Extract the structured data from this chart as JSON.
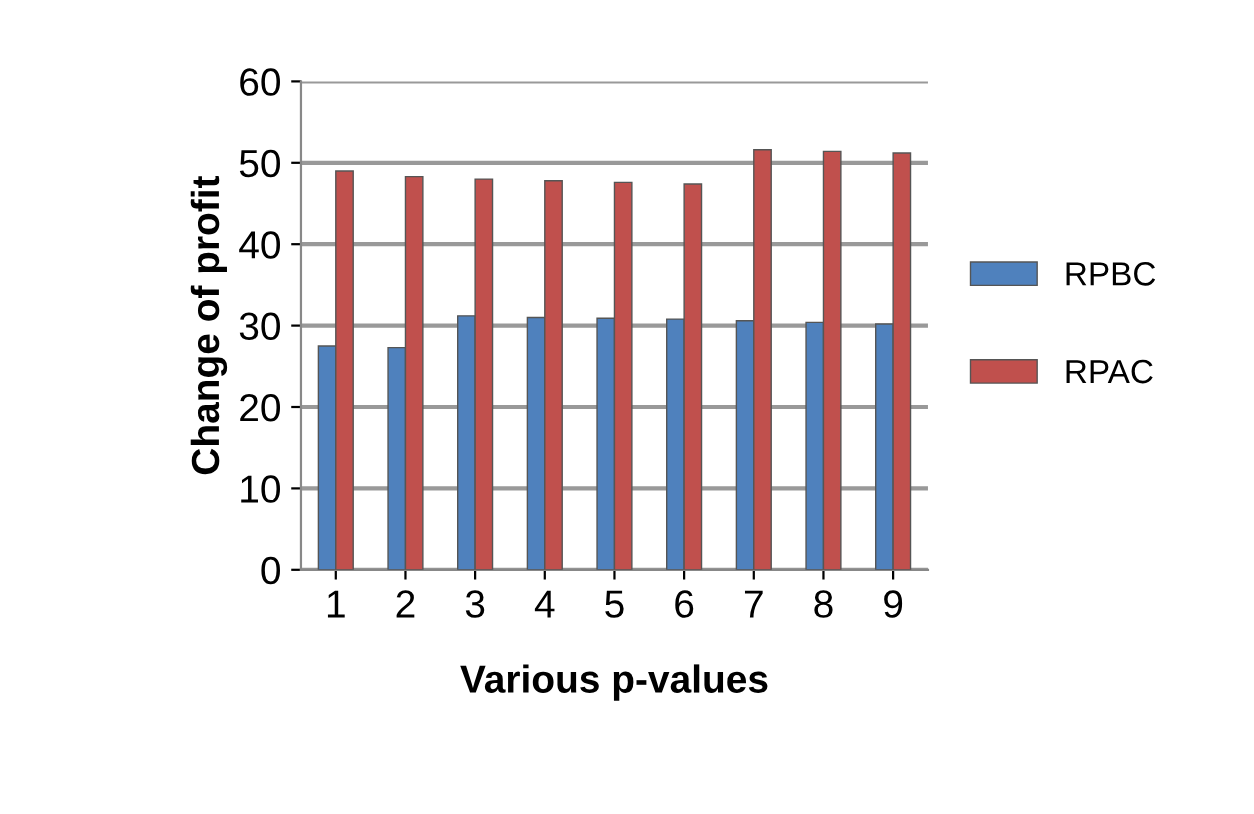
{
  "chart_data": {
    "type": "bar",
    "xlabel": "Various p-values",
    "ylabel": "Change of profit",
    "categories": [
      "1",
      "2",
      "3",
      "4",
      "5",
      "6",
      "7",
      "8",
      "9"
    ],
    "series": [
      {
        "name": "RPBC",
        "color": "#4f81bd",
        "values": [
          27.5,
          27.3,
          31.2,
          31,
          30.9,
          30.8,
          30.6,
          30.4,
          30.2
        ]
      },
      {
        "name": "RPAC",
        "color": "#c0504d",
        "values": [
          49,
          48.3,
          48,
          47.8,
          47.6,
          47.4,
          51.6,
          51.4,
          51.2
        ]
      }
    ],
    "ylim": [
      0,
      60
    ],
    "yticks": [
      0,
      10,
      20,
      30,
      40,
      50,
      60
    ],
    "grid": "y",
    "legend": "right"
  }
}
